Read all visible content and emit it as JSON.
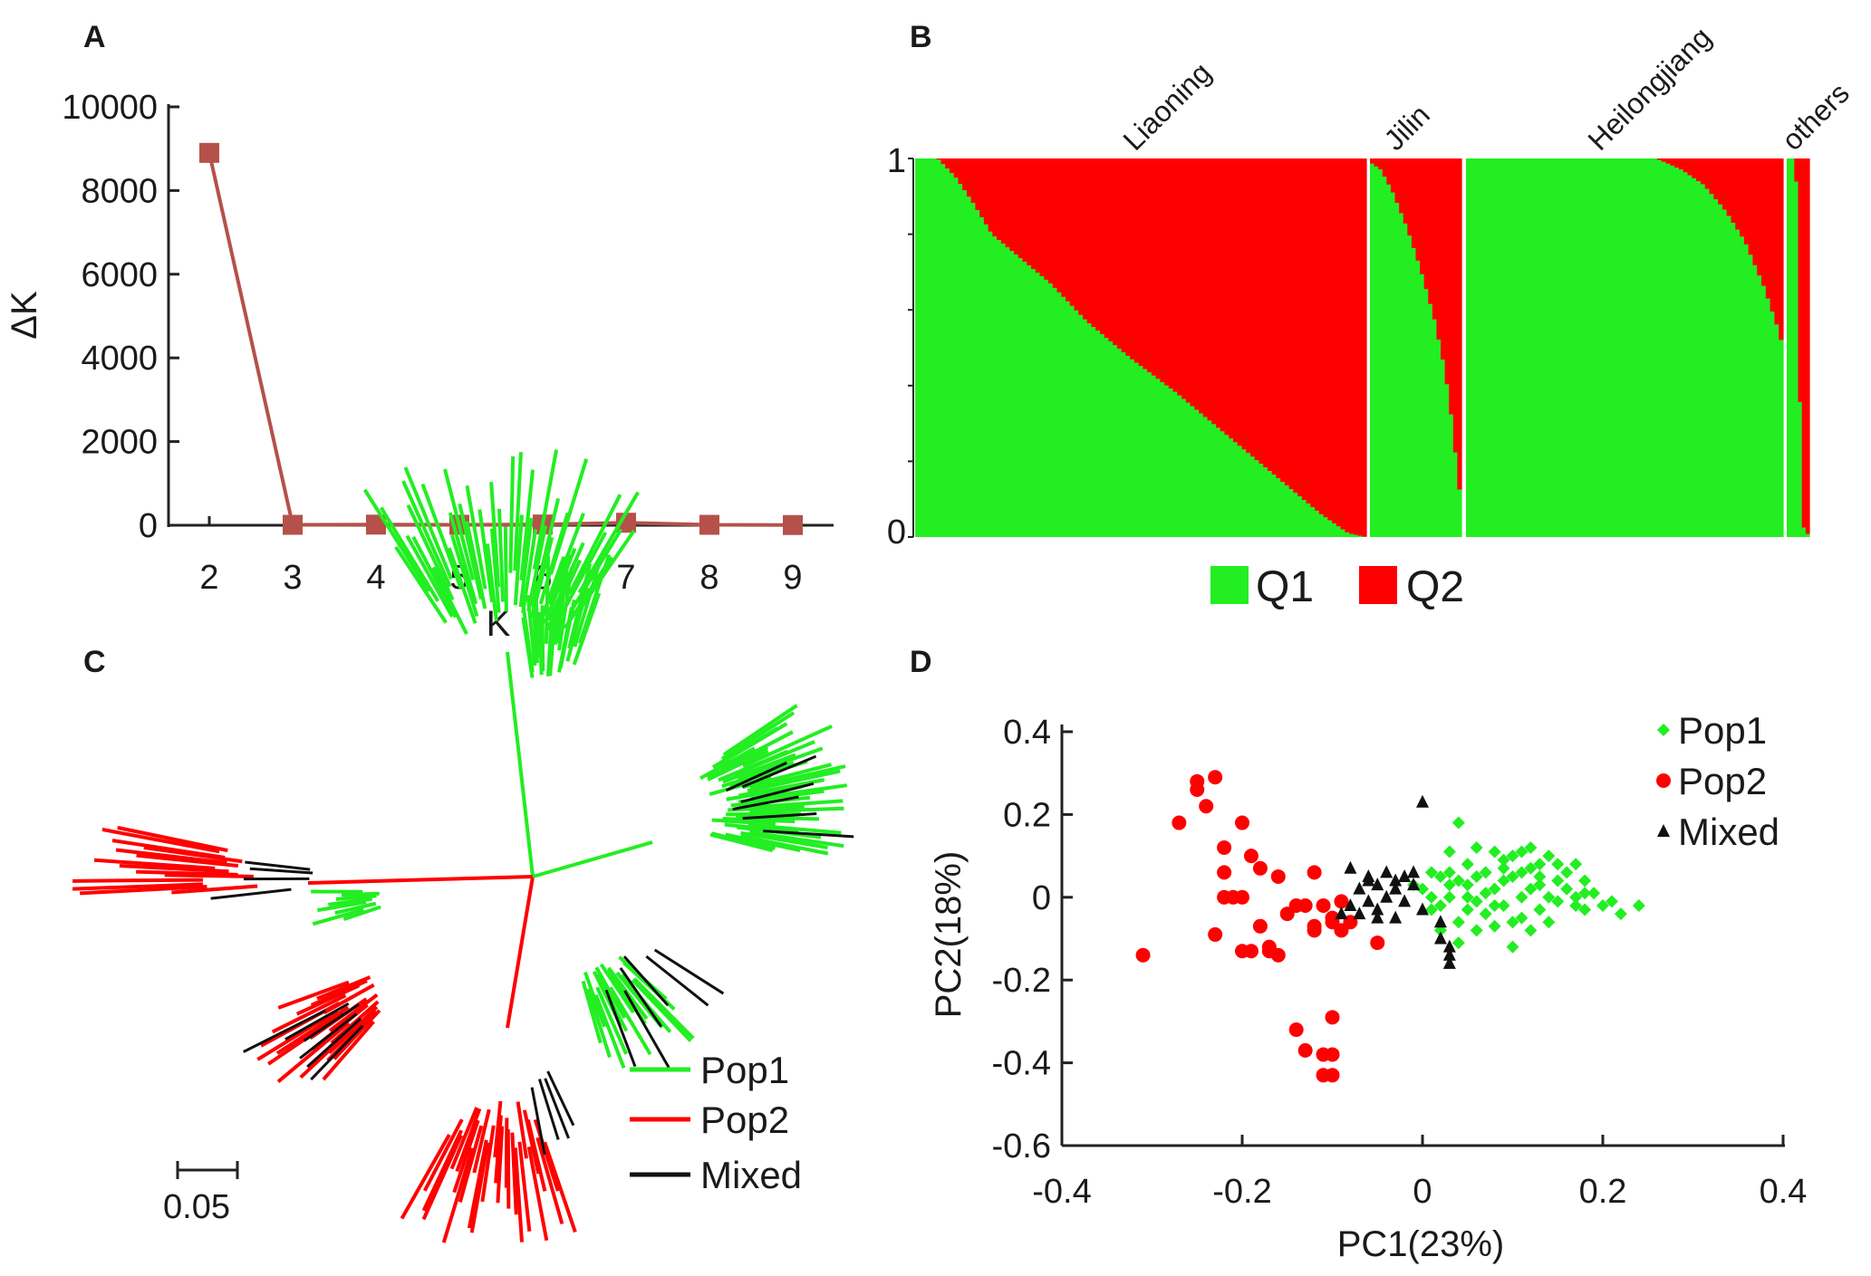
{
  "panels": {
    "A": "A",
    "B": "B",
    "C": "C",
    "D": "D"
  },
  "colors": {
    "pop1": "#22ee22",
    "pop2": "#ff0000",
    "mixed": "#111111",
    "deltaK": "#b5514a"
  },
  "chart_data": [
    {
      "panel": "A",
      "type": "line",
      "xlabel": "K",
      "ylabel": "ΔK",
      "x": [
        2,
        3,
        4,
        5,
        6,
        7,
        8,
        9
      ],
      "values": [
        8900,
        10,
        15,
        12,
        18,
        60,
        10,
        5
      ],
      "xticks": [
        "2",
        "3",
        "4",
        "5",
        "6",
        "7",
        "8",
        "9"
      ],
      "yticks": [
        "0",
        "2000",
        "4000",
        "6000",
        "8000",
        "10000"
      ],
      "ylim": [
        0,
        10000
      ]
    },
    {
      "panel": "B",
      "type": "bar",
      "stacked": true,
      "yticks": [
        "0",
        "1"
      ],
      "ylim": [
        0,
        1
      ],
      "groups": [
        {
          "name": "Liaoning",
          "n": 105,
          "q1_profile": [
            [
              0,
              1.0
            ],
            [
              0.05,
              1.0
            ],
            [
              0.09,
              0.95
            ],
            [
              0.13,
              0.88
            ],
            [
              0.17,
              0.8
            ],
            [
              0.23,
              0.74
            ],
            [
              0.3,
              0.67
            ],
            [
              0.38,
              0.57
            ],
            [
              0.48,
              0.47
            ],
            [
              0.58,
              0.38
            ],
            [
              0.66,
              0.3
            ],
            [
              0.74,
              0.22
            ],
            [
              0.82,
              0.14
            ],
            [
              0.9,
              0.06
            ],
            [
              0.96,
              0.01
            ],
            [
              1.0,
              0.0
            ]
          ]
        },
        {
          "name": "Jilin",
          "n": 22,
          "q1_profile": [
            [
              0,
              0.99
            ],
            [
              0.12,
              0.97
            ],
            [
              0.25,
              0.91
            ],
            [
              0.4,
              0.82
            ],
            [
              0.55,
              0.71
            ],
            [
              0.7,
              0.58
            ],
            [
              0.82,
              0.44
            ],
            [
              0.9,
              0.3
            ],
            [
              0.95,
              0.18
            ],
            [
              1.0,
              0.08
            ]
          ]
        },
        {
          "name": "Heilongjiang",
          "n": 73,
          "q1_profile": [
            [
              0,
              1.0
            ],
            [
              0.6,
              1.0
            ],
            [
              0.68,
              0.97
            ],
            [
              0.75,
              0.93
            ],
            [
              0.82,
              0.86
            ],
            [
              0.88,
              0.78
            ],
            [
              0.94,
              0.66
            ],
            [
              0.98,
              0.56
            ],
            [
              1.0,
              0.5
            ]
          ]
        },
        {
          "name": "others",
          "n": 6,
          "q1_profile": [
            [
              0,
              1.0
            ],
            [
              0.4,
              1.0
            ],
            [
              0.55,
              0.45
            ],
            [
              0.7,
              0.03
            ],
            [
              1.0,
              0.0
            ]
          ]
        }
      ],
      "legend": [
        "Q1",
        "Q2"
      ]
    },
    {
      "panel": "C",
      "type": "tree",
      "scale_label": "0.05",
      "legend": [
        "Pop1",
        "Pop2",
        "Mixed"
      ]
    },
    {
      "panel": "D",
      "type": "scatter",
      "xlabel": "PC1(23%)",
      "ylabel": "PC2(18%)",
      "xlim": [
        -0.4,
        0.4
      ],
      "ylim": [
        -0.6,
        0.4
      ],
      "xticks": [
        "-0.4",
        "-0.2",
        "0",
        "0.2",
        "0.4"
      ],
      "yticks": [
        "-0.6",
        "-0.4",
        "-0.2",
        "0",
        "0.2",
        "0.4"
      ],
      "series": [
        {
          "name": "Pop1",
          "marker": "diamond",
          "points": [
            [
              0.0,
              0.02
            ],
            [
              0.01,
              -0.03
            ],
            [
              0.02,
              0.05
            ],
            [
              0.03,
              0.0
            ],
            [
              0.04,
              -0.06
            ],
            [
              0.05,
              0.08
            ],
            [
              0.05,
              0.03
            ],
            [
              0.06,
              -0.01
            ],
            [
              0.07,
              0.06
            ],
            [
              0.07,
              -0.04
            ],
            [
              0.08,
              0.02
            ],
            [
              0.09,
              0.09
            ],
            [
              0.09,
              -0.02
            ],
            [
              0.1,
              0.05
            ],
            [
              0.11,
              0.0
            ],
            [
              0.11,
              -0.05
            ],
            [
              0.12,
              0.07
            ],
            [
              0.13,
              0.03
            ],
            [
              0.13,
              -0.03
            ],
            [
              0.14,
              0.1
            ],
            [
              0.15,
              0.04
            ],
            [
              0.15,
              -0.01
            ],
            [
              0.16,
              0.06
            ],
            [
              0.17,
              0.0
            ],
            [
              0.18,
              0.04
            ],
            [
              0.18,
              -0.03
            ],
            [
              0.19,
              0.01
            ],
            [
              0.2,
              -0.02
            ],
            [
              0.21,
              -0.01
            ],
            [
              0.22,
              -0.04
            ],
            [
              0.24,
              -0.02
            ],
            [
              0.04,
              0.18
            ],
            [
              0.06,
              0.12
            ],
            [
              0.08,
              0.11
            ],
            [
              0.12,
              0.12
            ],
            [
              0.17,
              0.08
            ],
            [
              0.1,
              0.1
            ],
            [
              0.02,
              -0.08
            ],
            [
              0.04,
              -0.11
            ],
            [
              0.06,
              -0.08
            ],
            [
              0.08,
              -0.07
            ],
            [
              0.1,
              -0.06
            ],
            [
              0.1,
              -0.12
            ],
            [
              0.12,
              -0.08
            ],
            [
              0.14,
              -0.06
            ],
            [
              0.03,
              0.11
            ],
            [
              0.01,
              0.06
            ],
            [
              -0.01,
              0.03
            ],
            [
              0.02,
              -0.02
            ],
            [
              0.03,
              0.06
            ],
            [
              0.05,
              -0.03
            ],
            [
              0.07,
              0.01
            ],
            [
              0.09,
              0.04
            ],
            [
              0.11,
              0.06
            ],
            [
              0.13,
              0.08
            ],
            [
              0.14,
              0.0
            ],
            [
              0.16,
              0.02
            ],
            [
              0.17,
              -0.02
            ],
            [
              0.06,
              0.05
            ],
            [
              0.08,
              -0.02
            ],
            [
              0.12,
              0.02
            ],
            [
              0.04,
              0.04
            ],
            [
              0.15,
              0.08
            ],
            [
              0.18,
              0.01
            ],
            [
              0.01,
              0.0
            ],
            [
              0.03,
              0.03
            ],
            [
              0.09,
              0.07
            ],
            [
              0.11,
              0.11
            ],
            [
              0.13,
              0.05
            ],
            [
              0.05,
              0.0
            ]
          ]
        },
        {
          "name": "Pop2",
          "marker": "circle",
          "points": [
            [
              -0.31,
              -0.14
            ],
            [
              -0.27,
              0.18
            ],
            [
              -0.25,
              0.28
            ],
            [
              -0.25,
              0.26
            ],
            [
              -0.23,
              0.29
            ],
            [
              -0.24,
              0.22
            ],
            [
              -0.22,
              0.12
            ],
            [
              -0.22,
              0.06
            ],
            [
              -0.21,
              0.0
            ],
            [
              -0.2,
              -0.13
            ],
            [
              -0.23,
              -0.09
            ],
            [
              -0.2,
              0.18
            ],
            [
              -0.19,
              0.1
            ],
            [
              -0.18,
              0.07
            ],
            [
              -0.18,
              -0.07
            ],
            [
              -0.19,
              -0.13
            ],
            [
              -0.17,
              -0.12
            ],
            [
              -0.16,
              -0.14
            ],
            [
              -0.16,
              0.05
            ],
            [
              -0.15,
              -0.04
            ],
            [
              -0.14,
              -0.32
            ],
            [
              -0.13,
              -0.37
            ],
            [
              -0.13,
              -0.02
            ],
            [
              -0.12,
              0.06
            ],
            [
              -0.12,
              -0.08
            ],
            [
              -0.11,
              -0.43
            ],
            [
              -0.11,
              -0.38
            ],
            [
              -0.1,
              -0.43
            ],
            [
              -0.1,
              -0.38
            ],
            [
              -0.1,
              -0.29
            ],
            [
              -0.11,
              -0.02
            ],
            [
              -0.1,
              -0.05
            ],
            [
              -0.09,
              -0.08
            ],
            [
              -0.2,
              0.0
            ],
            [
              -0.17,
              -0.13
            ],
            [
              -0.14,
              -0.02
            ],
            [
              -0.12,
              -0.07
            ],
            [
              -0.1,
              -0.06
            ],
            [
              -0.05,
              -0.11
            ],
            [
              -0.22,
              0.0
            ],
            [
              -0.09,
              -0.01
            ],
            [
              -0.08,
              -0.06
            ]
          ]
        },
        {
          "name": "Mixed",
          "marker": "triangle",
          "points": [
            [
              0.0,
              0.23
            ],
            [
              -0.08,
              0.07
            ],
            [
              -0.06,
              0.05
            ],
            [
              -0.05,
              0.03
            ],
            [
              -0.04,
              0.0
            ],
            [
              -0.03,
              0.02
            ],
            [
              -0.02,
              -0.01
            ],
            [
              -0.01,
              0.03
            ],
            [
              -0.05,
              -0.03
            ],
            [
              -0.06,
              -0.01
            ],
            [
              -0.07,
              -0.04
            ],
            [
              -0.08,
              -0.02
            ],
            [
              -0.04,
              0.06
            ],
            [
              -0.02,
              0.05
            ],
            [
              -0.03,
              -0.05
            ],
            [
              0.0,
              -0.03
            ],
            [
              0.02,
              -0.06
            ],
            [
              0.03,
              -0.12
            ],
            [
              0.03,
              -0.16
            ],
            [
              0.03,
              -0.14
            ],
            [
              -0.01,
              0.06
            ],
            [
              -0.07,
              0.02
            ],
            [
              -0.05,
              -0.05
            ],
            [
              -0.09,
              -0.04
            ],
            [
              -0.06,
              0.04
            ],
            [
              0.02,
              -0.1
            ],
            [
              -0.03,
              0.04
            ]
          ]
        }
      ],
      "legend": [
        "Pop1",
        "Pop2",
        "Mixed"
      ]
    }
  ]
}
